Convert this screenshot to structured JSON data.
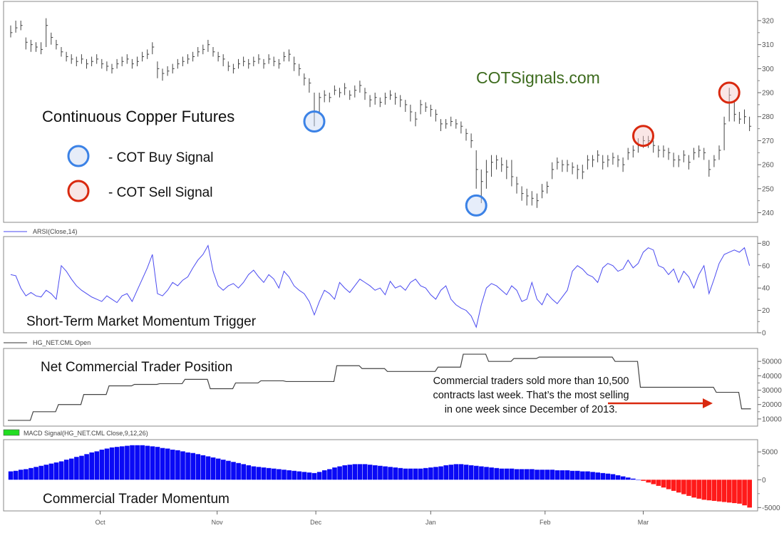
{
  "chart_data": [
    {
      "type": "ohlc",
      "title": "Continuous Copper Futures",
      "watermark": "COTSignals.com",
      "ylim": [
        236,
        328
      ],
      "yticks": [
        240,
        250,
        260,
        270,
        280,
        290,
        300,
        310,
        320
      ],
      "high": [
        318,
        320,
        320,
        313,
        312,
        311,
        311,
        321,
        315,
        312,
        309,
        307,
        306,
        305,
        306,
        304,
        305,
        306,
        304,
        303,
        302,
        304,
        305,
        306,
        304,
        305,
        307,
        308,
        311,
        303,
        300,
        301,
        302,
        304,
        305,
        306,
        307,
        309,
        310,
        312,
        309,
        307,
        306,
        303,
        302,
        304,
        305,
        304,
        305,
        306,
        304,
        306,
        305,
        304,
        307,
        308,
        305,
        302,
        298,
        296,
        290,
        290,
        291,
        290,
        293,
        292,
        294,
        291,
        293,
        295,
        292,
        289,
        290,
        288,
        290,
        291,
        290,
        289,
        287,
        285,
        282,
        287,
        286,
        285,
        283,
        279,
        279,
        280,
        279,
        278,
        275,
        273,
        266,
        258,
        262,
        264,
        264,
        263,
        262,
        262,
        255,
        251,
        250,
        249,
        248,
        252,
        253,
        261,
        263,
        262,
        262,
        261,
        260,
        260,
        264,
        264,
        266,
        264,
        264,
        265,
        264,
        263,
        267,
        268,
        271,
        272,
        272,
        270,
        268,
        268,
        267,
        265,
        264,
        266,
        264,
        267,
        268,
        267,
        262,
        264,
        268,
        280,
        292,
        287,
        282,
        283,
        280
      ],
      "low": [
        313,
        315,
        316,
        308,
        307,
        307,
        306,
        309,
        310,
        308,
        305,
        303,
        302,
        301,
        302,
        300,
        301,
        302,
        300,
        299,
        298,
        300,
        301,
        302,
        300,
        301,
        303,
        304,
        306,
        296,
        295,
        297,
        298,
        300,
        301,
        302,
        303,
        305,
        306,
        307,
        305,
        303,
        301,
        299,
        298,
        300,
        301,
        300,
        301,
        302,
        300,
        302,
        301,
        300,
        303,
        303,
        299,
        297,
        293,
        290,
        276,
        281,
        286,
        286,
        289,
        288,
        289,
        287,
        288,
        290,
        287,
        284,
        285,
        284,
        285,
        287,
        285,
        284,
        282,
        278,
        276,
        281,
        282,
        280,
        278,
        274,
        275,
        276,
        275,
        273,
        270,
        267,
        250,
        244,
        250,
        255,
        258,
        257,
        254,
        251,
        248,
        245,
        243,
        243,
        242,
        246,
        248,
        254,
        258,
        257,
        257,
        256,
        254,
        254,
        258,
        259,
        261,
        258,
        259,
        260,
        259,
        257,
        262,
        263,
        265,
        267,
        267,
        265,
        263,
        263,
        262,
        259,
        259,
        261,
        258,
        262,
        263,
        262,
        255,
        259,
        262,
        266,
        278,
        278,
        277,
        277,
        274
      ],
      "close": [
        315,
        317,
        318,
        311,
        310,
        309,
        308,
        318,
        313,
        310,
        307,
        305,
        304,
        303,
        304,
        302,
        303,
        304,
        302,
        301,
        300,
        302,
        303,
        304,
        302,
        303,
        305,
        306,
        309,
        300,
        298,
        299,
        300,
        302,
        303,
        304,
        305,
        307,
        308,
        310,
        307,
        305,
        304,
        301,
        300,
        302,
        303,
        302,
        303,
        304,
        302,
        304,
        303,
        302,
        305,
        306,
        302,
        300,
        296,
        294,
        282,
        288,
        289,
        288,
        291,
        290,
        292,
        289,
        291,
        293,
        290,
        287,
        288,
        286,
        288,
        289,
        288,
        287,
        285,
        282,
        279,
        285,
        284,
        283,
        281,
        277,
        277,
        278,
        277,
        276,
        273,
        270,
        258,
        253,
        257,
        261,
        262,
        260,
        259,
        255,
        252,
        248,
        247,
        246,
        245,
        249,
        251,
        258,
        261,
        260,
        260,
        259,
        258,
        257,
        262,
        262,
        264,
        261,
        262,
        263,
        262,
        260,
        265,
        266,
        268,
        270,
        270,
        268,
        266,
        266,
        265,
        262,
        262,
        264,
        261,
        265,
        266,
        265,
        258,
        262,
        266,
        277,
        289,
        281,
        279,
        280,
        276
      ],
      "signals": [
        {
          "type": "buy",
          "bar": 60,
          "price": 278
        },
        {
          "type": "buy",
          "bar": 92,
          "price": 243
        },
        {
          "type": "sell",
          "bar": 125,
          "price": 272
        },
        {
          "type": "sell",
          "bar": 142,
          "price": 290
        }
      ],
      "legend": [
        {
          "label": "- COT Buy Signal",
          "color": "#3b82e6",
          "fill": "#e6ecf8"
        },
        {
          "label": "- COT Sell Signal",
          "color": "#d9290f",
          "fill": "#f8e6e6"
        }
      ]
    },
    {
      "type": "line",
      "series_label": "ARSI(Close,14)",
      "title": "Short-Term Market Momentum Trigger",
      "color": "#4a4af0",
      "ylim": [
        0,
        86
      ],
      "yticks": [
        0,
        20,
        40,
        60,
        80
      ],
      "values": [
        52,
        51,
        40,
        33,
        36,
        33,
        32,
        38,
        35,
        30,
        60,
        55,
        48,
        42,
        38,
        35,
        32,
        30,
        28,
        33,
        30,
        27,
        33,
        35,
        28,
        38,
        48,
        58,
        70,
        35,
        33,
        38,
        45,
        42,
        47,
        50,
        58,
        65,
        70,
        78,
        55,
        42,
        38,
        42,
        44,
        40,
        45,
        52,
        56,
        50,
        45,
        52,
        48,
        40,
        55,
        50,
        42,
        38,
        35,
        28,
        16,
        28,
        38,
        35,
        30,
        45,
        40,
        36,
        42,
        48,
        45,
        42,
        38,
        40,
        34,
        46,
        40,
        42,
        38,
        45,
        48,
        42,
        40,
        34,
        30,
        38,
        42,
        30,
        25,
        22,
        20,
        15,
        5,
        25,
        40,
        44,
        42,
        38,
        34,
        42,
        38,
        28,
        30,
        45,
        30,
        25,
        35,
        30,
        26,
        32,
        38,
        55,
        60,
        57,
        52,
        50,
        45,
        58,
        62,
        60,
        55,
        57,
        65,
        58,
        62,
        72,
        76,
        74,
        60,
        58,
        52,
        57,
        45,
        55,
        50,
        40,
        52,
        60,
        35,
        48,
        62,
        70,
        72,
        74,
        72,
        76,
        60
      ]
    },
    {
      "type": "step",
      "series_label": "HG_NET.CML Open",
      "title": "Net Commercial Trader Position",
      "color": "#333333",
      "ylim": [
        5000,
        59000
      ],
      "yticks": [
        10000,
        20000,
        30000,
        40000,
        50000
      ],
      "weekly_values": [
        9000,
        15000,
        20000,
        27000,
        33000,
        34000,
        34500,
        37500,
        31000,
        35000,
        36500,
        36000,
        36000,
        47000,
        45000,
        43000,
        43000,
        46000,
        55000,
        50000,
        52000,
        53000,
        53000,
        53000,
        50000,
        32000,
        32000,
        32000,
        28500,
        17000
      ],
      "annotation": [
        "Commercial traders sold more than 10,500",
        "contracts last week. That’s the most selling",
        "in one week since December of 2013."
      ],
      "arrow_color": "#d9290f"
    },
    {
      "type": "bar",
      "series_label": "MACD Signal(HG_NET.CML Close,9,12,26)",
      "title": "Commercial Trader Momentum",
      "legend_color": "#22dd22",
      "positive_color": "#0a0af5",
      "negative_color": "#ff1a1a",
      "ylim": [
        -5600,
        7200
      ],
      "yticks": [
        -5000,
        0,
        5000
      ],
      "values": [
        1500,
        1600,
        1800,
        1900,
        2100,
        2300,
        2500,
        2700,
        2900,
        3100,
        3300,
        3600,
        3800,
        4100,
        4300,
        4600,
        4900,
        5100,
        5400,
        5600,
        5800,
        5900,
        6000,
        6100,
        6200,
        6200,
        6200,
        6100,
        6000,
        5900,
        5700,
        5600,
        5400,
        5300,
        5100,
        4900,
        4800,
        4600,
        4400,
        4200,
        4000,
        3800,
        3600,
        3400,
        3200,
        3000,
        2800,
        2600,
        2400,
        2300,
        2200,
        2100,
        2000,
        1900,
        1800,
        1700,
        1600,
        1500,
        1400,
        1300,
        1200,
        1400,
        1700,
        1900,
        2200,
        2400,
        2600,
        2700,
        2800,
        2800,
        2800,
        2700,
        2600,
        2500,
        2400,
        2300,
        2200,
        2100,
        2000,
        2000,
        2000,
        2000,
        2100,
        2200,
        2300,
        2400,
        2600,
        2700,
        2800,
        2800,
        2700,
        2600,
        2500,
        2400,
        2300,
        2200,
        2100,
        2000,
        2000,
        2000,
        1900,
        1900,
        1900,
        1900,
        1800,
        1800,
        1800,
        1800,
        1700,
        1700,
        1700,
        1600,
        1600,
        1500,
        1500,
        1400,
        1300,
        1200,
        1100,
        1000,
        800,
        600,
        400,
        200,
        0,
        -200,
        -500,
        -800,
        -1100,
        -1400,
        -1700,
        -2000,
        -2300,
        -2600,
        -2900,
        -3200,
        -3400,
        -3600,
        -3700,
        -3800,
        -3900,
        -4000,
        -4100,
        -4200,
        -4300,
        -4600,
        -5000
      ]
    }
  ],
  "x_axis": {
    "months": [
      "Oct",
      "Nov",
      "Dec",
      "Jan",
      "Feb",
      "Mar"
    ]
  }
}
